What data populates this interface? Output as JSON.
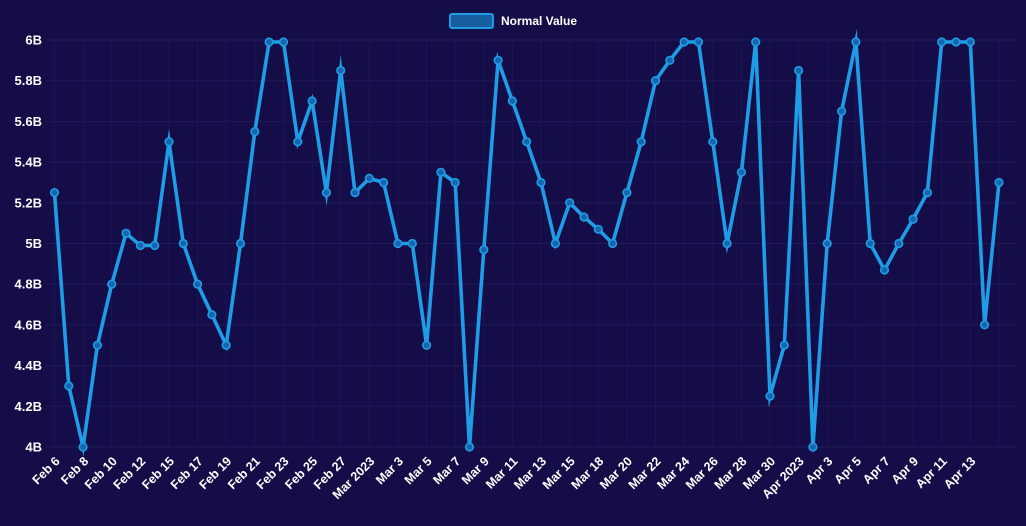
{
  "page": {
    "background_color": "#140D47"
  },
  "legend": {
    "label": "Normal Value",
    "swatch_fill": "#175E9E",
    "swatch_border": "#1E9CE6",
    "position": "top-center"
  },
  "chart_data": {
    "type": "line",
    "title": "",
    "xlabel": "",
    "ylabel": "",
    "ylim": [
      4,
      6
    ],
    "grid": true,
    "legend_position": "top-center",
    "line_color": "#1E9CE6",
    "marker_fill": "#1566AE",
    "grid_color": "#201A57",
    "label_color": "#FFFFFF",
    "y_ticks": [
      "4B",
      "4.2B",
      "4.4B",
      "4.6B",
      "4.8B",
      "5B",
      "5.2B",
      "5.4B",
      "5.6B",
      "5.8B",
      "6B"
    ],
    "y_tick_values": [
      4,
      4.2,
      4.4,
      4.6,
      4.8,
      5,
      5.2,
      5.4,
      5.6,
      5.8,
      6
    ],
    "x_tick_labels": [
      "Feb 6",
      "Feb 8",
      "Feb 10",
      "Feb 12",
      "Feb 15",
      "Feb 17",
      "Feb 19",
      "Feb 21",
      "Feb 23",
      "Feb 25",
      "Feb 27",
      "Mar 2023",
      "Mar 3",
      "Mar 5",
      "Mar 7",
      "Mar 9",
      "Mar 11",
      "Mar 13",
      "Mar 15",
      "Mar 18",
      "Mar 20",
      "Mar 22",
      "Mar 24",
      "Mar 26",
      "Mar 28",
      "Mar 30",
      "Apr 2023",
      "Apr 3",
      "Apr 5",
      "Apr 7",
      "Apr 9",
      "Apr 11",
      "Apr 13"
    ],
    "x_label_every_n_points": 2,
    "series": [
      {
        "name": "Normal Value",
        "values": [
          5.25,
          4.3,
          4.0,
          4.5,
          4.8,
          5.05,
          4.99,
          4.99,
          5.5,
          5.0,
          4.8,
          4.65,
          4.5,
          5.0,
          5.55,
          5.99,
          5.99,
          5.5,
          5.7,
          5.25,
          5.85,
          5.25,
          5.32,
          5.3,
          5.0,
          5.0,
          4.5,
          5.35,
          5.3,
          4.0,
          4.97,
          5.9,
          5.7,
          5.5,
          5.3,
          5.0,
          5.2,
          5.13,
          5.07,
          5.0,
          5.25,
          5.5,
          5.8,
          5.9,
          5.99,
          5.99,
          5.5,
          5.0,
          5.35,
          5.99,
          4.25,
          4.5,
          5.85,
          4.0,
          5.0,
          5.65,
          5.99,
          5.0,
          4.87,
          5.0,
          5.12,
          5.25,
          5.99,
          5.99,
          5.99,
          4.6,
          5.3
        ]
      }
    ]
  }
}
